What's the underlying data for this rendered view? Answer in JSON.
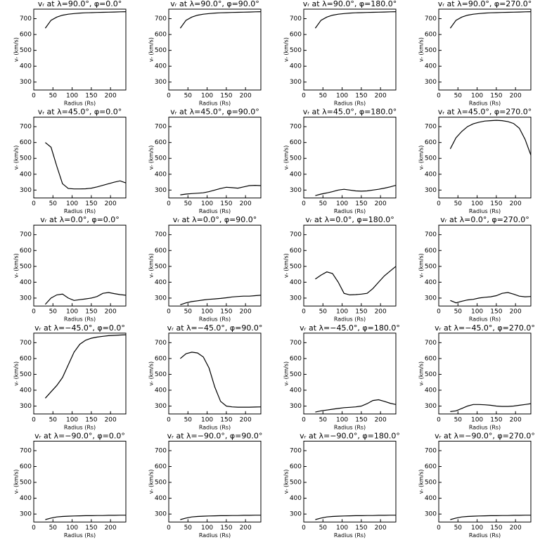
{
  "chart_data": [
    {
      "type": "line",
      "title": "vᵣ at λ=90.0°, φ=0.0°",
      "xlabel": "Radius (Rs)",
      "ylabel": "vᵣ (km/s)",
      "x": [
        30,
        45,
        60,
        75,
        90,
        105,
        120,
        135,
        150,
        165,
        180,
        195,
        210,
        225,
        240
      ],
      "values": [
        640,
        690,
        710,
        722,
        728,
        732,
        735,
        737,
        738,
        739,
        740,
        741,
        742,
        743,
        744
      ],
      "xlim": [
        0,
        240
      ],
      "ylim": [
        250,
        760
      ],
      "xticks": [
        0,
        50,
        100,
        150,
        200
      ],
      "yticks": [
        300,
        400,
        500,
        600,
        700
      ],
      "color": "#000000"
    },
    {
      "type": "line",
      "title": "vᵣ at λ=90.0°, φ=90.0°",
      "xlabel": "Radius (Rs)",
      "ylabel": "vᵣ (km/s)",
      "x": [
        30,
        45,
        60,
        75,
        90,
        105,
        120,
        135,
        150,
        165,
        180,
        195,
        210,
        225,
        240
      ],
      "values": [
        640,
        690,
        710,
        722,
        728,
        732,
        735,
        737,
        738,
        739,
        740,
        741,
        742,
        743,
        744
      ],
      "xlim": [
        0,
        240
      ],
      "ylim": [
        250,
        760
      ],
      "xticks": [
        0,
        50,
        100,
        150,
        200
      ],
      "yticks": [
        300,
        400,
        500,
        600,
        700
      ],
      "color": "#000000"
    },
    {
      "type": "line",
      "title": "vᵣ at λ=90.0°, φ=180.0°",
      "xlabel": "Radius (Rs)",
      "ylabel": "vᵣ (km/s)",
      "x": [
        30,
        45,
        60,
        75,
        90,
        105,
        120,
        135,
        150,
        165,
        180,
        195,
        210,
        225,
        240
      ],
      "values": [
        640,
        690,
        710,
        722,
        728,
        732,
        735,
        737,
        738,
        739,
        740,
        741,
        742,
        743,
        744
      ],
      "xlim": [
        0,
        240
      ],
      "ylim": [
        250,
        760
      ],
      "xticks": [
        0,
        50,
        100,
        150,
        200
      ],
      "yticks": [
        300,
        400,
        500,
        600,
        700
      ],
      "color": "#000000"
    },
    {
      "type": "line",
      "title": "vᵣ at λ=90.0°, φ=270.0°",
      "xlabel": "Radius (Rs)",
      "ylabel": "vᵣ (km/s)",
      "x": [
        30,
        45,
        60,
        75,
        90,
        105,
        120,
        135,
        150,
        165,
        180,
        195,
        210,
        225,
        240
      ],
      "values": [
        640,
        690,
        710,
        722,
        728,
        732,
        735,
        737,
        738,
        739,
        740,
        741,
        742,
        743,
        744
      ],
      "xlim": [
        0,
        240
      ],
      "ylim": [
        250,
        760
      ],
      "xticks": [
        0,
        50,
        100,
        150,
        200
      ],
      "yticks": [
        300,
        400,
        500,
        600,
        700
      ],
      "color": "#000000"
    },
    {
      "type": "line",
      "title": "vᵣ at λ=45.0°, φ=0.0°",
      "xlabel": "Radius (Rs)",
      "ylabel": "vᵣ (km/s)",
      "x": [
        30,
        45,
        60,
        75,
        90,
        105,
        120,
        135,
        150,
        165,
        180,
        195,
        210,
        225,
        240
      ],
      "values": [
        600,
        570,
        450,
        340,
        310,
        307,
        307,
        308,
        312,
        320,
        330,
        340,
        350,
        358,
        345
      ],
      "xlim": [
        0,
        240
      ],
      "ylim": [
        250,
        760
      ],
      "xticks": [
        0,
        50,
        100,
        150,
        200
      ],
      "yticks": [
        300,
        400,
        500,
        600,
        700
      ],
      "color": "#000000"
    },
    {
      "type": "line",
      "title": "vᵣ at λ=45.0°, φ=90.0°",
      "xlabel": "Radius (Rs)",
      "ylabel": "vᵣ (km/s)",
      "x": [
        30,
        45,
        60,
        75,
        90,
        105,
        120,
        135,
        150,
        165,
        180,
        195,
        210,
        225,
        240
      ],
      "values": [
        270,
        275,
        278,
        280,
        283,
        290,
        300,
        310,
        318,
        315,
        312,
        320,
        328,
        330,
        328
      ],
      "xlim": [
        0,
        240
      ],
      "ylim": [
        250,
        760
      ],
      "xticks": [
        0,
        50,
        100,
        150,
        200
      ],
      "yticks": [
        300,
        400,
        500,
        600,
        700
      ],
      "color": "#000000"
    },
    {
      "type": "line",
      "title": "vᵣ at λ=45.0°, φ=180.0°",
      "xlabel": "Radius (Rs)",
      "ylabel": "vᵣ (km/s)",
      "x": [
        30,
        45,
        60,
        75,
        90,
        105,
        120,
        135,
        150,
        165,
        180,
        195,
        210,
        225,
        240
      ],
      "values": [
        265,
        275,
        282,
        290,
        300,
        305,
        300,
        295,
        293,
        295,
        300,
        305,
        312,
        320,
        330
      ],
      "xlim": [
        0,
        240
      ],
      "ylim": [
        250,
        760
      ],
      "xticks": [
        0,
        50,
        100,
        150,
        200
      ],
      "yticks": [
        300,
        400,
        500,
        600,
        700
      ],
      "color": "#000000"
    },
    {
      "type": "line",
      "title": "vᵣ at λ=45.0°, φ=270.0°",
      "xlabel": "Radius (Rs)",
      "ylabel": "vᵣ (km/s)",
      "x": [
        30,
        45,
        60,
        75,
        90,
        105,
        120,
        135,
        150,
        165,
        180,
        195,
        210,
        225,
        240
      ],
      "values": [
        560,
        630,
        670,
        700,
        718,
        728,
        735,
        738,
        740,
        738,
        732,
        720,
        690,
        620,
        520
      ],
      "xlim": [
        0,
        240
      ],
      "ylim": [
        250,
        760
      ],
      "xticks": [
        0,
        50,
        100,
        150,
        200
      ],
      "yticks": [
        300,
        400,
        500,
        600,
        700
      ],
      "color": "#000000"
    },
    {
      "type": "line",
      "title": "vᵣ at λ=0.0°, φ=0.0°",
      "xlabel": "Radius (Rs)",
      "ylabel": "vᵣ (km/s)",
      "x": [
        30,
        45,
        60,
        75,
        90,
        105,
        120,
        135,
        150,
        165,
        180,
        195,
        210,
        225,
        240
      ],
      "values": [
        260,
        300,
        320,
        325,
        300,
        285,
        290,
        295,
        300,
        310,
        330,
        335,
        328,
        322,
        318
      ],
      "xlim": [
        0,
        240
      ],
      "ylim": [
        250,
        760
      ],
      "xticks": [
        0,
        50,
        100,
        150,
        200
      ],
      "yticks": [
        300,
        400,
        500,
        600,
        700
      ],
      "color": "#000000"
    },
    {
      "type": "line",
      "title": "vᵣ at λ=0.0°, φ=90.0°",
      "xlabel": "Radius (Rs)",
      "ylabel": "vᵣ (km/s)",
      "x": [
        30,
        45,
        60,
        75,
        90,
        105,
        120,
        135,
        150,
        165,
        180,
        195,
        210,
        225,
        240
      ],
      "values": [
        258,
        270,
        278,
        283,
        288,
        292,
        295,
        298,
        302,
        307,
        310,
        312,
        312,
        315,
        318
      ],
      "xlim": [
        0,
        240
      ],
      "ylim": [
        250,
        760
      ],
      "xticks": [
        0,
        50,
        100,
        150,
        200
      ],
      "yticks": [
        300,
        400,
        500,
        600,
        700
      ],
      "color": "#000000"
    },
    {
      "type": "line",
      "title": "vᵣ at λ=0.0°, φ=180.0°",
      "xlabel": "Radius (Rs)",
      "ylabel": "vᵣ (km/s)",
      "x": [
        30,
        45,
        60,
        75,
        90,
        105,
        120,
        135,
        150,
        165,
        180,
        195,
        210,
        225,
        240
      ],
      "values": [
        420,
        445,
        465,
        455,
        400,
        330,
        320,
        322,
        325,
        330,
        360,
        400,
        440,
        470,
        500
      ],
      "xlim": [
        0,
        240
      ],
      "ylim": [
        250,
        760
      ],
      "xticks": [
        0,
        50,
        100,
        150,
        200
      ],
      "yticks": [
        300,
        400,
        500,
        600,
        700
      ],
      "color": "#000000"
    },
    {
      "type": "line",
      "title": "vᵣ at λ=0.0°, φ=270.0°",
      "xlabel": "Radius (Rs)",
      "ylabel": "vᵣ (km/s)",
      "x": [
        30,
        45,
        60,
        75,
        90,
        105,
        120,
        135,
        150,
        165,
        180,
        195,
        210,
        225,
        240
      ],
      "values": [
        285,
        270,
        280,
        288,
        292,
        300,
        305,
        308,
        315,
        330,
        335,
        325,
        312,
        308,
        310
      ],
      "xlim": [
        0,
        240
      ],
      "ylim": [
        250,
        760
      ],
      "xticks": [
        0,
        50,
        100,
        150,
        200
      ],
      "yticks": [
        300,
        400,
        500,
        600,
        700
      ],
      "color": "#000000"
    },
    {
      "type": "line",
      "title": "vᵣ at λ=−45.0°, φ=0.0°",
      "xlabel": "Radius (Rs)",
      "ylabel": "vᵣ (km/s)",
      "x": [
        30,
        45,
        60,
        75,
        90,
        105,
        120,
        135,
        150,
        165,
        180,
        195,
        210,
        225,
        240
      ],
      "values": [
        350,
        390,
        430,
        480,
        560,
        640,
        690,
        715,
        728,
        735,
        740,
        744,
        746,
        748,
        750
      ],
      "xlim": [
        0,
        240
      ],
      "ylim": [
        250,
        760
      ],
      "xticks": [
        0,
        50,
        100,
        150,
        200
      ],
      "yticks": [
        300,
        400,
        500,
        600,
        700
      ],
      "color": "#000000"
    },
    {
      "type": "line",
      "title": "vᵣ at λ=−45.0°, φ=90.0°",
      "xlabel": "Radius (Rs)",
      "ylabel": "vᵣ (km/s)",
      "x": [
        30,
        45,
        60,
        75,
        90,
        105,
        120,
        135,
        150,
        165,
        180,
        195,
        210,
        225,
        240
      ],
      "values": [
        600,
        630,
        640,
        635,
        610,
        540,
        420,
        330,
        300,
        295,
        293,
        293,
        293,
        294,
        295
      ],
      "xlim": [
        0,
        240
      ],
      "ylim": [
        250,
        760
      ],
      "xticks": [
        0,
        50,
        100,
        150,
        200
      ],
      "yticks": [
        300,
        400,
        500,
        600,
        700
      ],
      "color": "#000000"
    },
    {
      "type": "line",
      "title": "vᵣ at λ=−45.0°, φ=180.0°",
      "xlabel": "Radius (Rs)",
      "ylabel": "vᵣ (km/s)",
      "x": [
        30,
        45,
        60,
        75,
        90,
        105,
        120,
        135,
        150,
        165,
        180,
        195,
        210,
        225,
        240
      ],
      "values": [
        262,
        270,
        275,
        280,
        285,
        290,
        292,
        295,
        300,
        315,
        335,
        340,
        330,
        318,
        310
      ],
      "xlim": [
        0,
        240
      ],
      "ylim": [
        250,
        760
      ],
      "xticks": [
        0,
        50,
        100,
        150,
        200
      ],
      "yticks": [
        300,
        400,
        500,
        600,
        700
      ],
      "color": "#000000"
    },
    {
      "type": "line",
      "title": "vᵣ at λ=−45.0°, φ=270.0°",
      "xlabel": "Radius (Rs)",
      "ylabel": "vᵣ (km/s)",
      "x": [
        30,
        45,
        60,
        75,
        90,
        105,
        120,
        135,
        150,
        165,
        180,
        195,
        210,
        225,
        240
      ],
      "values": [
        265,
        270,
        285,
        300,
        310,
        310,
        308,
        305,
        300,
        298,
        298,
        300,
        305,
        310,
        315
      ],
      "xlim": [
        0,
        240
      ],
      "ylim": [
        250,
        760
      ],
      "xticks": [
        0,
        50,
        100,
        150,
        200
      ],
      "yticks": [
        300,
        400,
        500,
        600,
        700
      ],
      "color": "#000000"
    },
    {
      "type": "line",
      "title": "vᵣ at λ=−90.0°, φ=0.0°",
      "xlabel": "Radius (Rs)",
      "ylabel": "vᵣ (km/s)",
      "x": [
        30,
        45,
        60,
        75,
        90,
        105,
        120,
        135,
        150,
        165,
        180,
        195,
        210,
        225,
        240
      ],
      "values": [
        265,
        275,
        282,
        285,
        287,
        288,
        289,
        290,
        290,
        291,
        291,
        292,
        292,
        293,
        293
      ],
      "xlim": [
        0,
        240
      ],
      "ylim": [
        250,
        760
      ],
      "xticks": [
        0,
        50,
        100,
        150,
        200
      ],
      "yticks": [
        300,
        400,
        500,
        600,
        700
      ],
      "color": "#000000"
    },
    {
      "type": "line",
      "title": "vᵣ at λ=−90.0°, φ=90.0°",
      "xlabel": "Radius (Rs)",
      "ylabel": "vᵣ (km/s)",
      "x": [
        30,
        45,
        60,
        75,
        90,
        105,
        120,
        135,
        150,
        165,
        180,
        195,
        210,
        225,
        240
      ],
      "values": [
        265,
        275,
        282,
        285,
        287,
        288,
        289,
        290,
        290,
        291,
        291,
        292,
        292,
        293,
        293
      ],
      "xlim": [
        0,
        240
      ],
      "ylim": [
        250,
        760
      ],
      "xticks": [
        0,
        50,
        100,
        150,
        200
      ],
      "yticks": [
        300,
        400,
        500,
        600,
        700
      ],
      "color": "#000000"
    },
    {
      "type": "line",
      "title": "vᵣ at λ=−90.0°, φ=180.0°",
      "xlabel": "Radius (Rs)",
      "ylabel": "vᵣ (km/s)",
      "x": [
        30,
        45,
        60,
        75,
        90,
        105,
        120,
        135,
        150,
        165,
        180,
        195,
        210,
        225,
        240
      ],
      "values": [
        265,
        275,
        282,
        285,
        287,
        288,
        289,
        290,
        290,
        291,
        291,
        292,
        292,
        293,
        293
      ],
      "xlim": [
        0,
        240
      ],
      "ylim": [
        250,
        760
      ],
      "xticks": [
        0,
        50,
        100,
        150,
        200
      ],
      "yticks": [
        300,
        400,
        500,
        600,
        700
      ],
      "color": "#000000"
    },
    {
      "type": "line",
      "title": "vᵣ at λ=−90.0°, φ=270.0°",
      "xlabel": "Radius (Rs)",
      "ylabel": "vᵣ (km/s)",
      "x": [
        30,
        45,
        60,
        75,
        90,
        105,
        120,
        135,
        150,
        165,
        180,
        195,
        210,
        225,
        240
      ],
      "values": [
        265,
        275,
        282,
        285,
        287,
        288,
        289,
        290,
        290,
        291,
        291,
        292,
        292,
        293,
        293
      ],
      "xlim": [
        0,
        240
      ],
      "ylim": [
        250,
        760
      ],
      "xticks": [
        0,
        50,
        100,
        150,
        200
      ],
      "yticks": [
        300,
        400,
        500,
        600,
        700
      ],
      "color": "#000000"
    }
  ]
}
